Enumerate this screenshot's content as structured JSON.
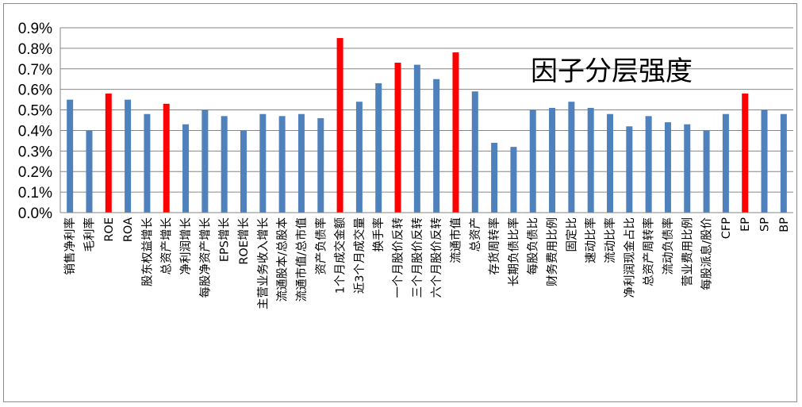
{
  "chart_data": {
    "type": "bar",
    "title": "因子分层强度",
    "xlabel": "",
    "ylabel": "",
    "ylim": [
      0,
      0.9
    ],
    "yticks": [
      "0.0%",
      "0.1%",
      "0.2%",
      "0.3%",
      "0.4%",
      "0.5%",
      "0.6%",
      "0.7%",
      "0.8%",
      "0.9%"
    ],
    "grid": true,
    "legend": "none",
    "colors": {
      "default": "#4f81bd",
      "highlight": "#ff0000",
      "grid": "#868686"
    },
    "categories": [
      "销售净利率",
      "毛利率",
      "ROE",
      "ROA",
      "股东权益增长",
      "总资产增长",
      "净利润增长",
      "每股净资产增长",
      "EPS增长",
      "ROE增长",
      "主营业务收入增长",
      "流通股本/总股本",
      "流通市值/总市值",
      "资产负债率",
      "1个月成交金额",
      "近3个月成交量",
      "换手率",
      "一个月股价反转",
      "三个月股价反转",
      "六个月股价反转",
      "流通市值",
      "总资产",
      "存货周转率",
      "长期负债比率",
      "每股负债比",
      "财务费用比例",
      "固定比",
      "速动比率",
      "流动比率",
      "净利润现金占比",
      "总资产周转率",
      "流动负债率",
      "营业费用比例",
      "每股派息/股价",
      "CFP",
      "EP",
      "SP",
      "BP"
    ],
    "values": [
      0.55,
      0.4,
      0.58,
      0.55,
      0.48,
      0.53,
      0.43,
      0.5,
      0.47,
      0.4,
      0.48,
      0.47,
      0.48,
      0.46,
      0.85,
      0.54,
      0.63,
      0.73,
      0.72,
      0.65,
      0.78,
      0.59,
      0.34,
      0.32,
      0.5,
      0.51,
      0.54,
      0.51,
      0.48,
      0.42,
      0.47,
      0.44,
      0.43,
      0.4,
      0.48,
      0.58,
      0.5,
      0.48
    ],
    "highlighted": [
      "ROE",
      "总资产增长",
      "1个月成交金额",
      "一个月股价反转",
      "流通市值",
      "EP"
    ]
  }
}
